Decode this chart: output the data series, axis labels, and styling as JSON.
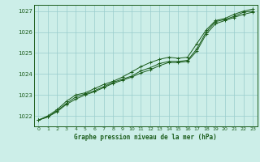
{
  "title": "Graphe pression niveau de la mer (hPa)",
  "x_ticks": [
    0,
    1,
    2,
    3,
    4,
    5,
    6,
    7,
    8,
    9,
    10,
    11,
    12,
    13,
    14,
    15,
    16,
    17,
    18,
    19,
    20,
    21,
    22,
    23
  ],
  "xlim": [
    -0.5,
    23.5
  ],
  "ylim": [
    1021.5,
    1027.3
  ],
  "y_ticks": [
    1022,
    1023,
    1024,
    1025,
    1026,
    1027
  ],
  "background_color": "#cceee8",
  "grid_color": "#99cccc",
  "line_color": "#1a5c1a",
  "marker_color": "#1a5c1a",
  "series1": [
    [
      0,
      1021.8
    ],
    [
      1,
      1021.95
    ],
    [
      2,
      1022.2
    ],
    [
      3,
      1022.55
    ],
    [
      4,
      1022.8
    ],
    [
      5,
      1023.0
    ],
    [
      6,
      1023.15
    ],
    [
      7,
      1023.35
    ],
    [
      8,
      1023.55
    ],
    [
      9,
      1023.7
    ],
    [
      10,
      1023.85
    ],
    [
      11,
      1024.05
    ],
    [
      12,
      1024.2
    ],
    [
      13,
      1024.4
    ],
    [
      14,
      1024.55
    ],
    [
      15,
      1024.55
    ],
    [
      16,
      1024.6
    ],
    [
      17,
      1025.1
    ],
    [
      18,
      1025.9
    ],
    [
      19,
      1026.4
    ],
    [
      20,
      1026.55
    ],
    [
      21,
      1026.7
    ],
    [
      22,
      1026.85
    ],
    [
      23,
      1026.95
    ]
  ],
  "series2": [
    [
      0,
      1021.8
    ],
    [
      1,
      1021.95
    ],
    [
      2,
      1022.25
    ],
    [
      3,
      1022.6
    ],
    [
      4,
      1022.9
    ],
    [
      5,
      1023.05
    ],
    [
      6,
      1023.2
    ],
    [
      7,
      1023.4
    ],
    [
      8,
      1023.6
    ],
    [
      9,
      1023.75
    ],
    [
      10,
      1023.9
    ],
    [
      11,
      1024.15
    ],
    [
      12,
      1024.3
    ],
    [
      13,
      1024.5
    ],
    [
      14,
      1024.6
    ],
    [
      15,
      1024.6
    ],
    [
      16,
      1024.65
    ],
    [
      17,
      1025.2
    ],
    [
      18,
      1026.0
    ],
    [
      19,
      1026.5
    ],
    [
      20,
      1026.6
    ],
    [
      21,
      1026.75
    ],
    [
      22,
      1026.95
    ],
    [
      23,
      1027.0
    ]
  ],
  "series3": [
    [
      0,
      1021.8
    ],
    [
      1,
      1022.0
    ],
    [
      2,
      1022.3
    ],
    [
      3,
      1022.7
    ],
    [
      4,
      1023.0
    ],
    [
      5,
      1023.1
    ],
    [
      6,
      1023.3
    ],
    [
      7,
      1023.5
    ],
    [
      8,
      1023.65
    ],
    [
      9,
      1023.85
    ],
    [
      10,
      1024.1
    ],
    [
      11,
      1024.35
    ],
    [
      12,
      1024.55
    ],
    [
      13,
      1024.7
    ],
    [
      14,
      1024.8
    ],
    [
      15,
      1024.75
    ],
    [
      16,
      1024.8
    ],
    [
      17,
      1025.45
    ],
    [
      18,
      1026.1
    ],
    [
      19,
      1026.55
    ],
    [
      20,
      1026.65
    ],
    [
      21,
      1026.85
    ],
    [
      22,
      1027.0
    ],
    [
      23,
      1027.1
    ]
  ]
}
